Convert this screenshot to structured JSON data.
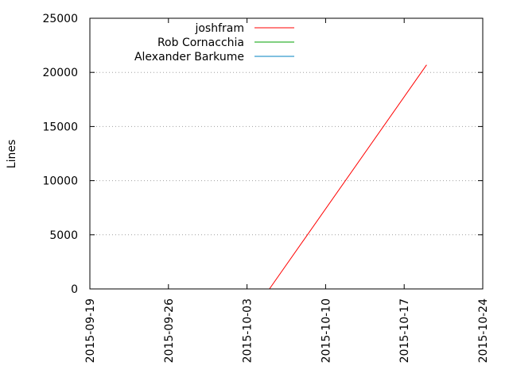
{
  "chart_data": {
    "type": "line",
    "title": "",
    "xlabel": "",
    "ylabel": "Lines",
    "xlim": [
      "2015-09-19",
      "2015-10-24"
    ],
    "ylim": [
      0,
      25000
    ],
    "x_ticks": [
      "2015-09-19",
      "2015-09-26",
      "2015-10-03",
      "2015-10-10",
      "2015-10-17",
      "2015-10-24"
    ],
    "y_ticks": [
      "0",
      "5000",
      "10000",
      "15000",
      "20000",
      "25000"
    ],
    "grid": "horizontal dotted",
    "legend_position": "top-left",
    "series": [
      {
        "name": "joshfram",
        "color": "#ff0000",
        "points": [
          {
            "x": "2015-10-05",
            "y": 0
          },
          {
            "x": "2015-10-19",
            "y": 20700
          }
        ]
      },
      {
        "name": "Rob Cornacchia",
        "color": "#00a000",
        "points": []
      },
      {
        "name": "Alexander Barkume",
        "color": "#0080c0",
        "points": []
      }
    ]
  }
}
